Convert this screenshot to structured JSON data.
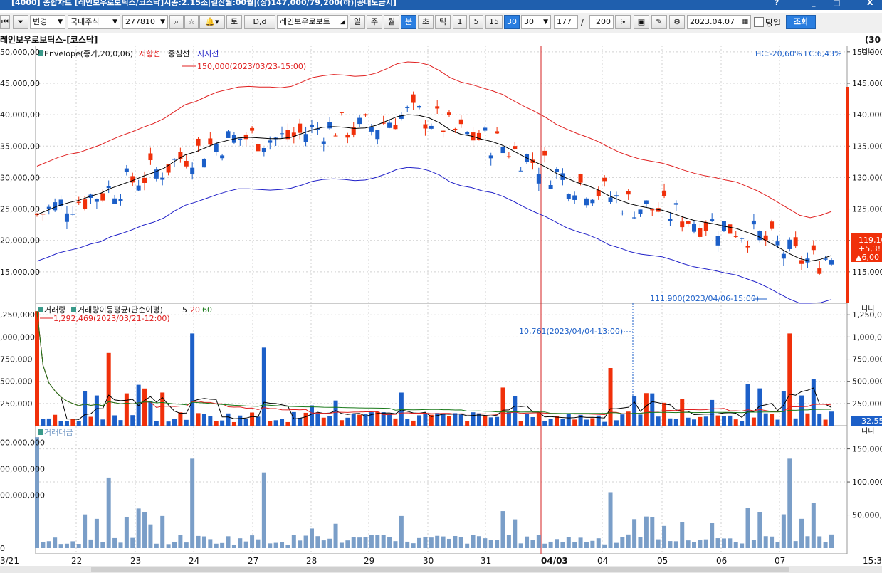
{
  "window": {
    "title": "[4000] 종합차트 [레인보우로보틱스/코스닥]시총:2.15조|결산월:00월|(상)147,000/79,200(하)|공매도금지]",
    "controls": [
      "?",
      "_",
      "□",
      "X"
    ]
  },
  "toolbar": {
    "mode_select": "변경",
    "market_select": "국내주식",
    "code": "277810",
    "d_button": "D,d",
    "to_button": "토",
    "stock_name": "레인보우로보트",
    "period_buttons": [
      "일",
      "주",
      "월",
      "분",
      "초",
      "틱",
      "1",
      "5",
      "15",
      "30"
    ],
    "active_period": "분",
    "active_interval": "30",
    "interval_select": "30",
    "count": "177",
    "separator": "/",
    "total": "200",
    "date": "2023.04.07",
    "today_label": "당일",
    "query_button": "조회"
  },
  "chart_header": {
    "name": "레인보우로보틱스-[코스닥]",
    "right": "(30"
  },
  "colors": {
    "up": "#f0300a",
    "down": "#1c5fc8",
    "upper_band": "#e02020",
    "middle_line": "#000000",
    "lower_band": "#2020c8",
    "vol_ma5": "#000000",
    "vol_ma20": "#e02020",
    "vol_ma60": "#1a7a1a",
    "amount_bar": "#7a9ec8",
    "crosshair": "#d42020",
    "grid": "#d0d0d0"
  },
  "price_panel": {
    "legend_name": "Envelope(종가,20,0,06)",
    "legend_upper": "저항선",
    "legend_middle": "중심선",
    "legend_lower": "지지선",
    "hl_info": "HC:-20,60%  LC:6,43%",
    "max_label": "150,000(2023/03/23-15:00)",
    "min_label": "111,900(2023/04/06-15:00)",
    "left_ticks": [
      "50,000,00",
      "45,000,00",
      "40,000,00",
      "35,000,00",
      "30,000,00",
      "25,000,00",
      "20,000,00",
      "15,000,00"
    ],
    "right_ticks": [
      "150,000",
      "145,000",
      "140,000",
      "135,000",
      "130,000",
      "125,000",
      "120,000",
      "115,000"
    ],
    "current_price": "119,10",
    "current_change": "+5,3!",
    "current_diff": "▲6,00"
  },
  "volume_panel": {
    "legend_name": "거래량",
    "legend_ma": "거래량이동평균(단순이평)",
    "legend_5": "5",
    "legend_20": "20",
    "legend_60": "60",
    "max_label": "1,292,469(2023/03/21-12:00)",
    "min_label": "10,761(2023/04/04-13:00)",
    "left_ticks": [
      ",250,000",
      ",000,000",
      "750,000",
      "500,000",
      "250,000"
    ],
    "right_ticks": [
      "1,250,000",
      "1,000,000",
      "750,000",
      "500,000",
      "250,000"
    ],
    "current_volume": "32,55"
  },
  "amount_panel": {
    "legend_name": "거래대금",
    "left_ticks": [
      "00,000,000",
      "00,000,000",
      "00,000,000",
      "0"
    ],
    "right_ticks": [
      "150,000,000",
      "100,000,000",
      "50,000,000"
    ]
  },
  "panel_unit_label": "니니",
  "x_axis": {
    "labels": [
      "3/21",
      "22",
      "23",
      "24",
      "27",
      "28",
      "29",
      "30",
      "31",
      "04/03",
      "04",
      "05",
      "06",
      "07",
      "15:30"
    ],
    "highlight": "04/03"
  },
  "chart_data": {
    "type": "candlestick",
    "interval": "30분",
    "price_range": [
      110000,
      151000
    ],
    "series": [
      {
        "name": "저항선",
        "values": [
          131800,
          132500,
          133200,
          133700,
          134000,
          134600,
          135200,
          136000,
          136700,
          137300,
          138000,
          138600,
          139400,
          140500,
          141600,
          142100,
          142900,
          143600,
          144000,
          144400,
          144500,
          144400,
          144400,
          144300,
          144500,
          145200,
          145900,
          146200,
          146400,
          146300,
          146100,
          146200,
          146600,
          147300,
          148100,
          148400,
          148300,
          147900,
          147000,
          145900,
          145200,
          144800,
          144300,
          143800,
          143200,
          142200,
          141300,
          140500,
          139600,
          138500,
          137700,
          137000,
          136400,
          135700,
          134800,
          134000,
          133400,
          132900,
          132600,
          132300,
          131800,
          131200,
          130700,
          130300,
          130000,
          129600,
          129300,
          128600,
          127900,
          127000,
          126000,
          125000,
          124000,
          123600,
          124000,
          124600
        ]
      },
      {
        "name": "중심선",
        "values": [
          124100,
          124800,
          125500,
          126000,
          126400,
          127000,
          127500,
          128300,
          128900,
          129500,
          130200,
          130800,
          131500,
          132600,
          133600,
          134100,
          134800,
          135500,
          135900,
          136300,
          136400,
          136300,
          136200,
          136200,
          136400,
          137000,
          137600,
          138000,
          138100,
          138000,
          137800,
          137900,
          138300,
          139000,
          139700,
          140000,
          139900,
          139500,
          138700,
          137600,
          136900,
          136600,
          136100,
          135700,
          135100,
          134200,
          133300,
          132500,
          131700,
          130700,
          129900,
          129200,
          128700,
          128000,
          127100,
          126400,
          125800,
          125400,
          125100,
          124800,
          124300,
          123700,
          123200,
          122900,
          122600,
          122200,
          121900,
          121300,
          120700,
          119800,
          118900,
          117900,
          117100,
          116700,
          117000,
          117600
        ]
      },
      {
        "name": "지지선",
        "values": [
          116700,
          117300,
          118000,
          118400,
          118800,
          119400,
          119800,
          120600,
          121100,
          121700,
          122400,
          122900,
          123600,
          124700,
          125600,
          126100,
          126700,
          127300,
          127800,
          128200,
          128200,
          128100,
          128000,
          128100,
          128300,
          128800,
          129400,
          129700,
          129800,
          129700,
          129500,
          129600,
          130000,
          130600,
          131300,
          131600,
          131500,
          131100,
          130400,
          129300,
          128700,
          128400,
          127900,
          127600,
          127000,
          126200,
          125300,
          124500,
          123800,
          122900,
          122000,
          121400,
          120900,
          120200,
          119300,
          118800,
          118200,
          117800,
          117600,
          117400,
          116900,
          116300,
          115800,
          115500,
          115200,
          114800,
          114500,
          113900,
          113300,
          112500,
          111600,
          110700,
          110000,
          109800,
          110100,
          110600
        ]
      }
    ],
    "volume_range": [
      0,
      1300000
    ],
    "amount_range": [
      0,
      170000000
    ]
  }
}
